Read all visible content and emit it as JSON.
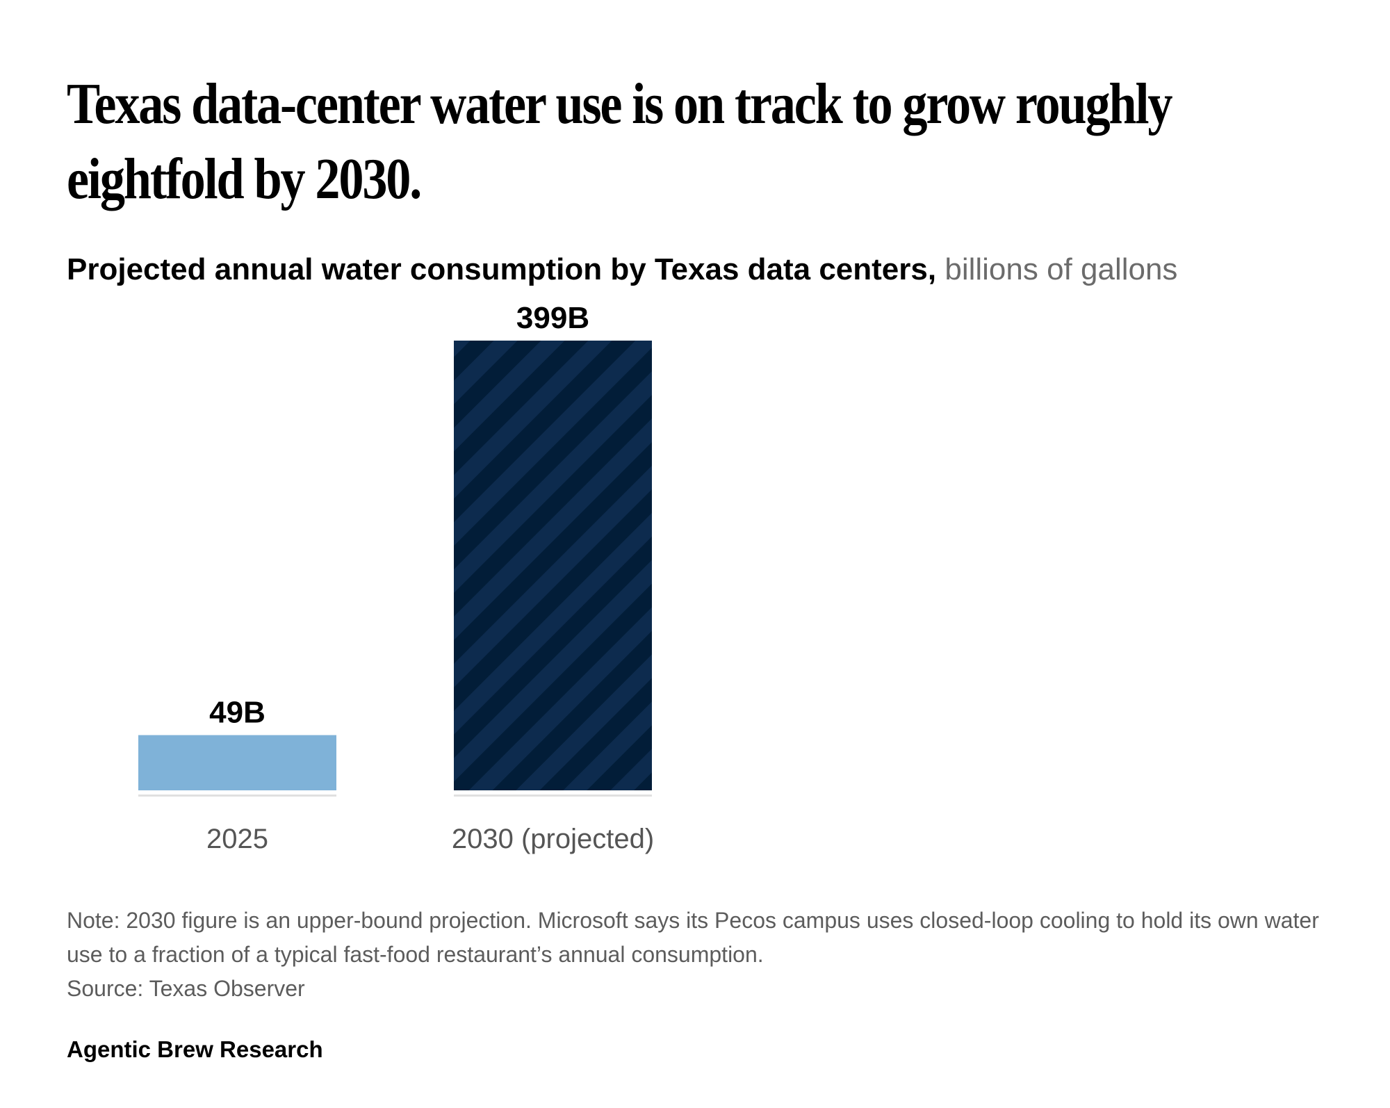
{
  "headline": "Texas data-center water use is on track to grow roughly eightfold by 2030.",
  "subtitle": {
    "main": "Projected annual water consumption by Texas data centers,",
    "unit": "billions of gallons"
  },
  "chart_data": {
    "type": "bar",
    "categories": [
      "2025",
      "2030 (projected)"
    ],
    "values": [
      49,
      399
    ],
    "data_labels": [
      "49B",
      "399B"
    ],
    "ylim": [
      0,
      399
    ],
    "grid": false,
    "colors": [
      "#7fb2d8",
      "#0d2b4e"
    ],
    "hatch_color": "#021d38",
    "hatched": [
      false,
      true
    ]
  },
  "note": "Note: 2030 figure is an upper-bound projection. Microsoft says its Pecos campus uses closed-loop cooling to hold its own water use to a fraction of a typical fast-food restaurant’s annual consumption.",
  "source": "Source: Texas Observer",
  "brand": "Agentic Brew Research"
}
